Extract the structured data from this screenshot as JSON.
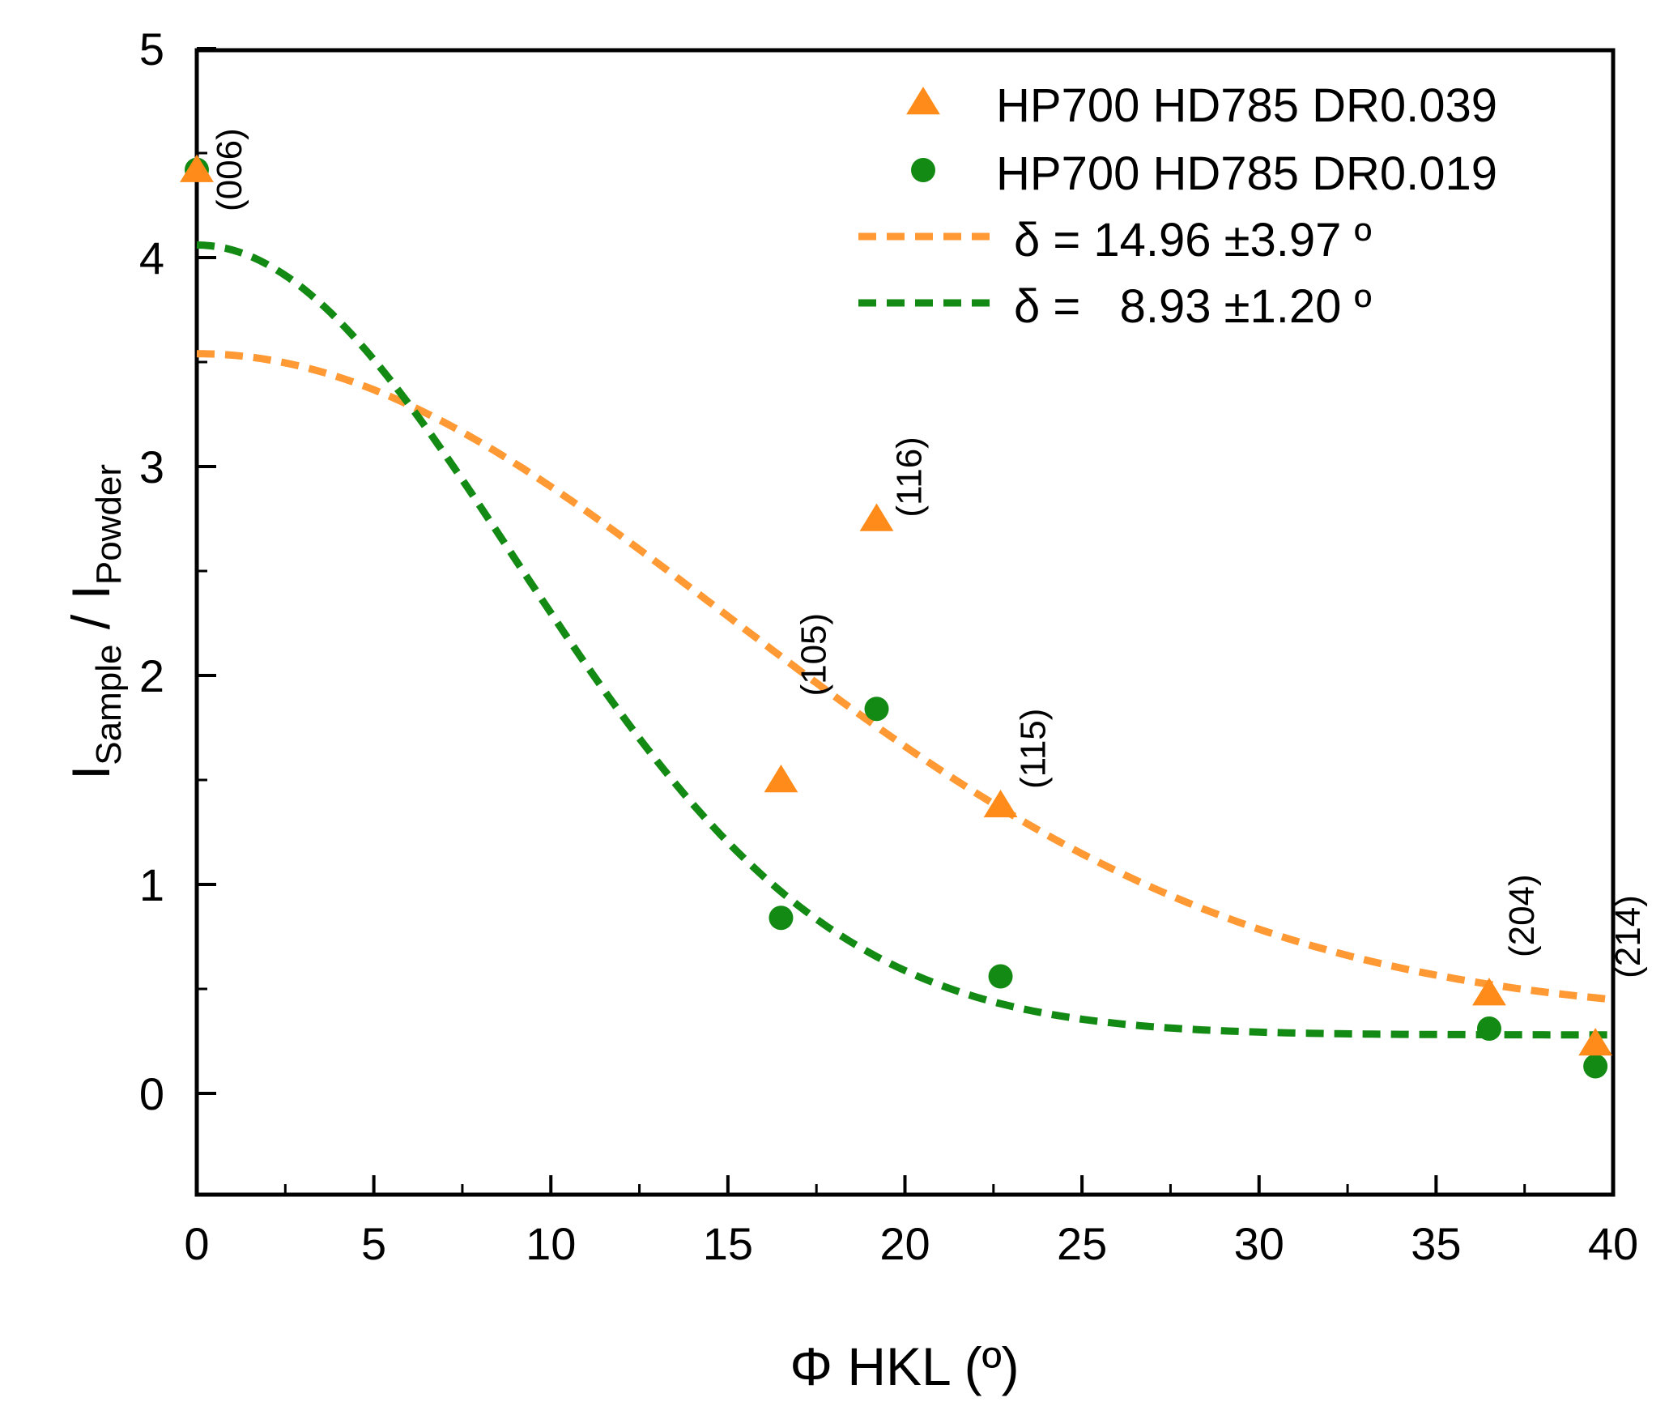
{
  "chart_data": {
    "type": "scatter",
    "title": "",
    "xlabel": "Φ HKL (º)",
    "ylabel": {
      "main": "I",
      "sub1": "Sample",
      "sep": " / ",
      "main2": "I",
      "sub2": "Powder"
    },
    "xlim": [
      0,
      40
    ],
    "ylim": [
      -0.5,
      5
    ],
    "xticks": [
      0,
      5,
      10,
      15,
      20,
      25,
      30,
      35,
      40
    ],
    "xtick_labels": [
      "0",
      "5",
      "10",
      "15",
      "20",
      "25",
      "30",
      "35",
      "40"
    ],
    "yticks": [
      0,
      1,
      2,
      3,
      4,
      5
    ],
    "ytick_labels": [
      "0",
      "1",
      "2",
      "3",
      "4",
      "5"
    ],
    "x_minor_step": 2.5,
    "y_minor_step": 0.5,
    "legend_position": "top-right",
    "series": [
      {
        "name": "HP700 HD785 DR0.039",
        "marker": "triangle",
        "color": "#ff8c1a",
        "x": [
          0,
          16.5,
          19.2,
          22.7,
          36.5,
          39.5
        ],
        "y": [
          4.42,
          1.5,
          2.75,
          1.38,
          0.48,
          0.24
        ]
      },
      {
        "name": "HP700 HD785 DR0.019",
        "marker": "circle",
        "color": "#138a13",
        "x": [
          0,
          16.5,
          19.2,
          22.7,
          36.5,
          39.5
        ],
        "y": [
          4.42,
          0.84,
          1.84,
          0.56,
          0.31,
          0.13
        ]
      }
    ],
    "fits": [
      {
        "label": "δ = 14.96 ±3.97 º",
        "color": "#ff9933",
        "delta": 14.96,
        "amplitude": 3.18,
        "offset": 0.36
      },
      {
        "label": "δ =   8.93 ±1.20 º",
        "color": "#138a13",
        "delta": 8.93,
        "amplitude": 3.78,
        "offset": 0.28
      }
    ],
    "annotations": [
      {
        "text": "(006)",
        "x": 0,
        "y": 4.42
      },
      {
        "text": "(105)",
        "x": 16.5,
        "y": 2.1
      },
      {
        "text": "(116)",
        "x": 19.2,
        "y": 2.95
      },
      {
        "text": "(115)",
        "x": 22.7,
        "y": 1.65
      },
      {
        "text": "(204)",
        "x": 36.5,
        "y": 0.85
      },
      {
        "text": "(214)",
        "x": 39.5,
        "y": 0.75
      }
    ]
  }
}
